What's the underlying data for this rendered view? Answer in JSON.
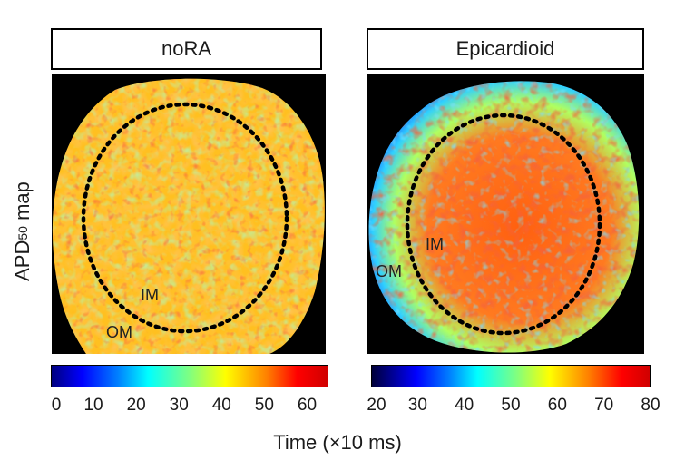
{
  "panels": [
    {
      "title": "noRA",
      "label_inner": "IM",
      "label_outer": "OM"
    },
    {
      "title": "Epicardioid",
      "label_inner": "IM",
      "label_outer": "OM"
    }
  ],
  "ylabel": {
    "main": "APD",
    "sub": "50",
    "suffix": " map"
  },
  "xlabel": "Time (×10 ms)",
  "colorbars": [
    {
      "ticks": [
        "0",
        "10",
        "20",
        "30",
        "40",
        "50",
        "60"
      ],
      "min": 0,
      "max": 65
    },
    {
      "ticks": [
        "20",
        "30",
        "40",
        "50",
        "60",
        "70",
        "80"
      ],
      "min": 20,
      "max": 80
    }
  ],
  "colors": {
    "dotted_ellipse": "#000000",
    "background": "#000000"
  }
}
